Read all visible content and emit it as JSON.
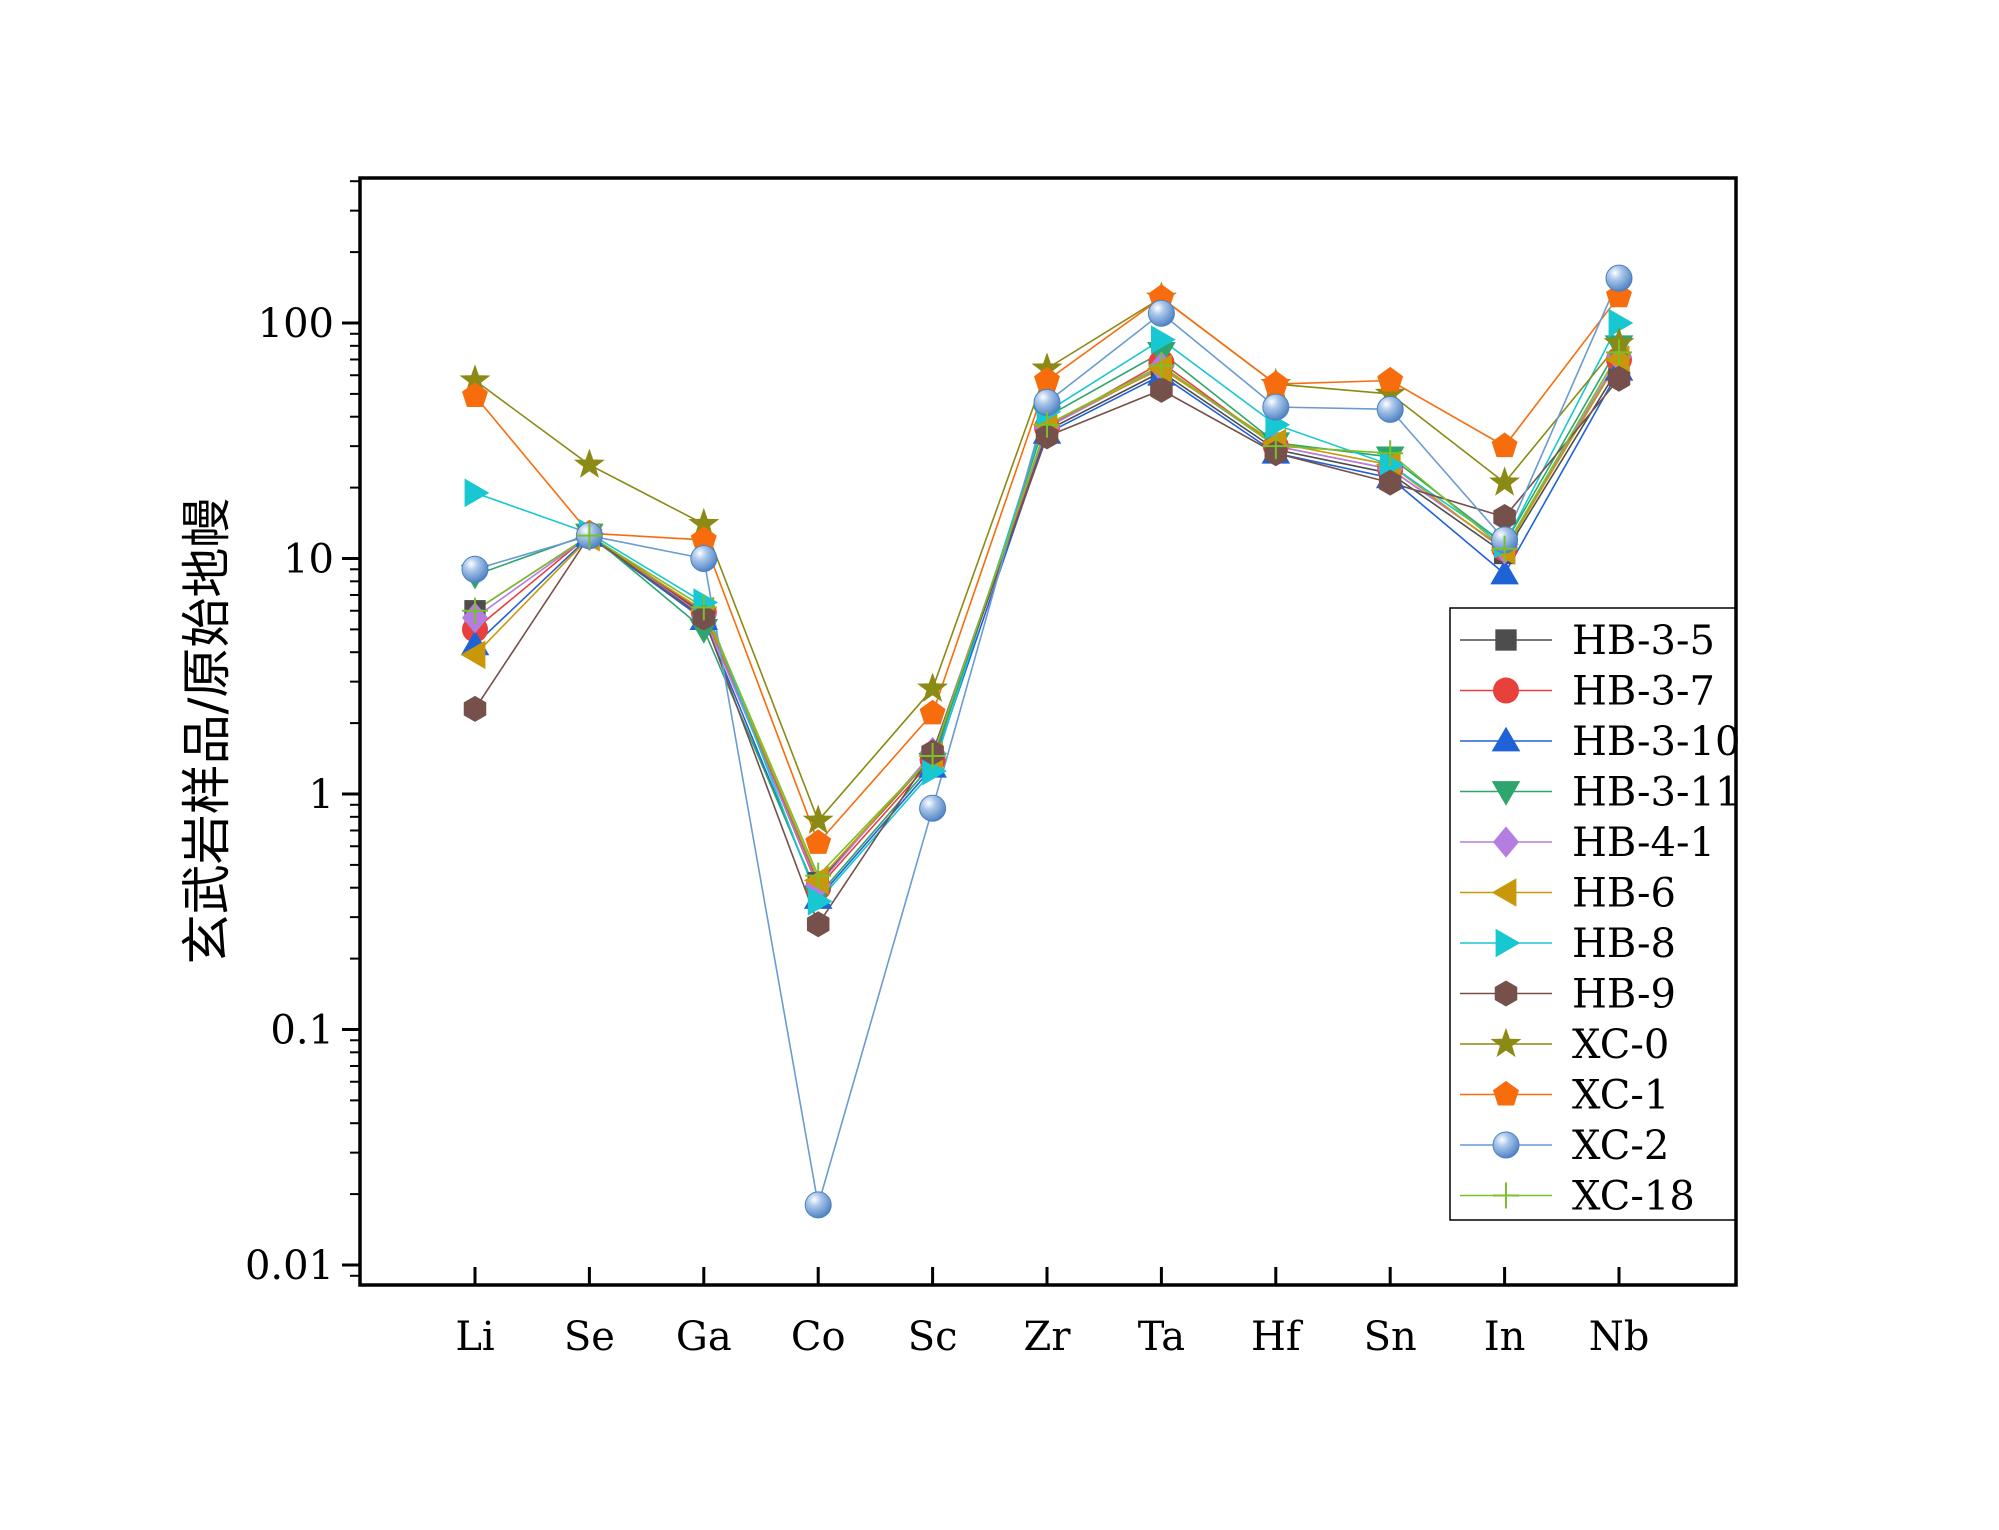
{
  "chart_data": {
    "type": "line",
    "title": "",
    "xlabel": "",
    "ylabel": "玄武岩样品/原始地幔",
    "yscale": "log",
    "ylim": [
      0.008,
      400
    ],
    "yticks": [
      {
        "value": 0.01,
        "label": "0.01"
      },
      {
        "value": 0.1,
        "label": "0.1"
      },
      {
        "value": 1,
        "label": "1"
      },
      {
        "value": 10,
        "label": "10"
      },
      {
        "value": 100,
        "label": "100"
      }
    ],
    "categories": [
      "Li",
      "Se",
      "Ga",
      "Co",
      "Sc",
      "Zr",
      "Ta",
      "Hf",
      "Sn",
      "In",
      "Nb"
    ],
    "legend_position": "right",
    "series": [
      {
        "name": "HB-3-5",
        "color": "#4d4d4d",
        "marker": "square",
        "values": [
          6.0,
          12.5,
          5.8,
          0.42,
          1.45,
          35,
          62,
          29,
          23,
          10.5,
          65
        ]
      },
      {
        "name": "HB-3-7",
        "color": "#e8403a",
        "marker": "circle",
        "values": [
          5.0,
          12.6,
          5.9,
          0.4,
          1.4,
          36,
          68,
          30,
          24,
          11.0,
          70
        ]
      },
      {
        "name": "HB-3-10",
        "color": "#1f62d8",
        "marker": "triangle-up",
        "values": [
          4.3,
          12.4,
          5.5,
          0.36,
          1.3,
          34,
          60,
          28,
          22,
          8.6,
          63
        ]
      },
      {
        "name": "HB-3-11",
        "color": "#2ea56d",
        "marker": "triangle-down",
        "values": [
          8.5,
          12.7,
          5.0,
          0.37,
          1.35,
          40,
          75,
          31,
          27,
          11.5,
          80
        ]
      },
      {
        "name": "HB-4-1",
        "color": "#b47de0",
        "marker": "diamond",
        "values": [
          5.6,
          12.5,
          5.7,
          0.41,
          1.5,
          36,
          65,
          30,
          24,
          11.0,
          72
        ]
      },
      {
        "name": "HB-6",
        "color": "#c9980a",
        "marker": "triangle-left",
        "values": [
          3.9,
          12.3,
          6.0,
          0.43,
          1.45,
          37,
          64,
          31,
          25,
          10.8,
          70
        ]
      },
      {
        "name": "HB-8",
        "color": "#17c7d2",
        "marker": "triangle-right",
        "values": [
          19,
          12.8,
          6.5,
          0.35,
          1.25,
          42,
          85,
          37,
          25,
          11.5,
          100
        ]
      },
      {
        "name": "HB-9",
        "color": "#76504a",
        "marker": "hexagon",
        "values": [
          2.3,
          12.5,
          5.6,
          0.28,
          1.5,
          33,
          52,
          28,
          21,
          15,
          58
        ]
      },
      {
        "name": "XC-0",
        "color": "#8a8a14",
        "marker": "star",
        "values": [
          57,
          25,
          14,
          0.77,
          2.8,
          64,
          128,
          55,
          50,
          21,
          82
        ]
      },
      {
        "name": "XC-1",
        "color": "#f76d0e",
        "marker": "pentagon",
        "values": [
          49,
          12.8,
          12.0,
          0.62,
          2.2,
          57,
          128,
          55,
          57,
          30,
          130
        ]
      },
      {
        "name": "XC-2",
        "color": "#6a9bd1",
        "marker": "sphere",
        "values": [
          9.0,
          12.5,
          10.0,
          0.018,
          0.87,
          46,
          110,
          44,
          43,
          12,
          155
        ]
      },
      {
        "name": "XC-18",
        "color": "#7bbf2a",
        "marker": "plus",
        "values": [
          6.0,
          12.5,
          6.2,
          0.45,
          1.45,
          37,
          66,
          30,
          28,
          11.0,
          75
        ]
      }
    ]
  }
}
